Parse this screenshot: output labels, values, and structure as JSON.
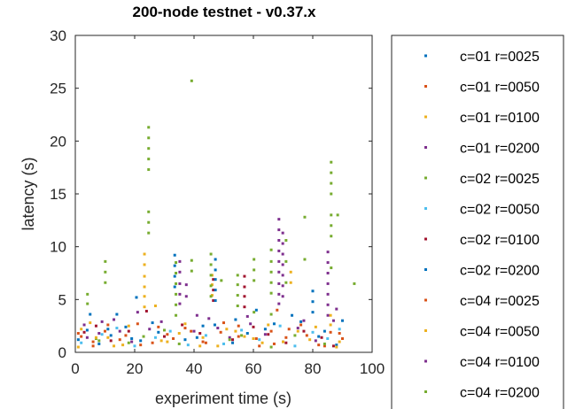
{
  "chart_data": {
    "type": "scatter",
    "title": "200-node testnet - v0.37.x",
    "xlabel": "experiment time (s)",
    "ylabel": "latency (s)",
    "xlim": [
      0,
      100
    ],
    "ylim": [
      0,
      30
    ],
    "xticks": [
      "0",
      "20",
      "40",
      "60",
      "80",
      "100"
    ],
    "yticks": [
      "0",
      "5",
      "10",
      "15",
      "20",
      "25",
      "30"
    ],
    "grid": false,
    "legend": "right-outside",
    "series": [
      {
        "name": "c=01 r=0025",
        "color": "#0072BD",
        "points": [
          [
            1,
            1.2
          ],
          [
            4,
            2.1
          ],
          [
            8,
            0.8
          ],
          [
            12,
            1.6
          ],
          [
            17,
            2.4
          ],
          [
            22,
            1.1
          ],
          [
            28,
            1.9
          ],
          [
            33.5,
            9.2
          ],
          [
            33.5,
            8.2
          ],
          [
            33.5,
            7.2
          ],
          [
            33.5,
            6.2
          ],
          [
            41,
            1.4
          ],
          [
            47,
            2.6
          ],
          [
            53,
            0.9
          ],
          [
            58,
            1.8
          ],
          [
            64,
            2.2
          ],
          [
            70,
            1.0
          ],
          [
            76,
            2.9
          ],
          [
            82,
            1.5
          ],
          [
            88,
            0.7
          ],
          [
            20.6,
            5.2
          ],
          [
            14,
            3.6
          ]
        ]
      },
      {
        "name": "c=01 r=0050",
        "color": "#D95319",
        "points": [
          [
            2,
            1.5
          ],
          [
            6,
            0.6
          ],
          [
            10,
            2.0
          ],
          [
            15,
            1.2
          ],
          [
            21,
            2.7
          ],
          [
            26,
            0.9
          ],
          [
            31,
            1.7
          ],
          [
            37,
            2.3
          ],
          [
            43,
            1.0
          ],
          [
            49,
            1.9
          ],
          [
            55,
            2.5
          ],
          [
            61,
            1.3
          ],
          [
            67,
            0.8
          ],
          [
            72,
            2.2
          ],
          [
            78,
            1.6
          ],
          [
            84,
            0.6
          ],
          [
            89,
            1.8
          ],
          [
            68,
            4.0
          ]
        ]
      },
      {
        "name": "c=01 r=0100",
        "color": "#EDB120",
        "points": [
          [
            1,
            0.5
          ],
          [
            5,
            2.8
          ],
          [
            11,
            1.4
          ],
          [
            16,
            0.7
          ],
          [
            23.3,
            9.3
          ],
          [
            23.3,
            8.3
          ],
          [
            23.3,
            7.2
          ],
          [
            23.3,
            6.2
          ],
          [
            23.3,
            5.3
          ],
          [
            23.3,
            4.3
          ],
          [
            29,
            1.1
          ],
          [
            35,
            1.8
          ],
          [
            42,
            0.6
          ],
          [
            46.1,
            7.3
          ],
          [
            46.1,
            6.4
          ],
          [
            46.1,
            5.4
          ],
          [
            51,
            2.2
          ],
          [
            57,
            1.5
          ],
          [
            63,
            0.9
          ],
          [
            72.6,
            7.6
          ],
          [
            72.6,
            6.6
          ],
          [
            79,
            1.2
          ],
          [
            86,
            2.6
          ],
          [
            88,
            0.5
          ]
        ]
      },
      {
        "name": "c=01 r=0200",
        "color": "#7E2F8E",
        "points": [
          [
            3,
            2.6
          ],
          [
            8,
            1.8
          ],
          [
            13,
            3.1
          ],
          [
            19,
            1.0
          ],
          [
            25,
            2.2
          ],
          [
            35.2,
            8.6
          ],
          [
            35.2,
            7.6
          ],
          [
            35.2,
            6.5
          ],
          [
            35.2,
            5.5
          ],
          [
            35.2,
            4.6
          ],
          [
            40,
            2.0
          ],
          [
            45,
            3.2
          ],
          [
            52,
            1.4
          ],
          [
            59,
            2.7
          ],
          [
            68.6,
            12.6
          ],
          [
            68.6,
            11.6
          ],
          [
            68.6,
            10.6
          ],
          [
            68.6,
            9.6
          ],
          [
            68.6,
            8.6
          ],
          [
            68.6,
            7.6
          ],
          [
            68.6,
            6.5
          ],
          [
            68.6,
            5.5
          ],
          [
            68.6,
            4.6
          ],
          [
            75,
            2.3
          ],
          [
            81,
            1.1
          ],
          [
            87,
            3.0
          ]
        ]
      },
      {
        "name": "c=02 r=0025",
        "color": "#77AC30",
        "points": [
          [
            24.7,
            21.3
          ],
          [
            24.7,
            20.3
          ],
          [
            24.7,
            19.3
          ],
          [
            24.7,
            18.3
          ],
          [
            24.7,
            17.3
          ],
          [
            24.7,
            13.3
          ],
          [
            24.7,
            12.3
          ],
          [
            24.7,
            11.3
          ],
          [
            39.2,
            25.7
          ],
          [
            39.2,
            8.7
          ],
          [
            39.2,
            7.7
          ],
          [
            10.1,
            8.6
          ],
          [
            10.1,
            7.6
          ],
          [
            10.1,
            6.6
          ],
          [
            4.1,
            5.5
          ],
          [
            4.1,
            4.6
          ],
          [
            33.9,
            8.5
          ],
          [
            33.9,
            7.5
          ],
          [
            33.9,
            6.5
          ],
          [
            33.9,
            5.5
          ],
          [
            33.9,
            4.5
          ],
          [
            33.9,
            3.5
          ],
          [
            45.7,
            9.3
          ],
          [
            45.7,
            8.3
          ],
          [
            45.7,
            7.3
          ],
          [
            45.7,
            6.3
          ],
          [
            45.7,
            5.3
          ],
          [
            7,
            1.3
          ],
          [
            18,
            0.9
          ],
          [
            30,
            2.1
          ],
          [
            56,
            1.6
          ],
          [
            66,
            0.5
          ]
        ]
      },
      {
        "name": "c=02 r=0050",
        "color": "#4DBEEE",
        "points": [
          [
            2,
            0.9
          ],
          [
            9,
            1.7
          ],
          [
            14,
            2.3
          ],
          [
            20,
            0.6
          ],
          [
            27,
            1.4
          ],
          [
            32,
            2.0
          ],
          [
            38,
            0.7
          ],
          [
            44,
            1.6
          ],
          [
            50,
            0.8
          ],
          [
            56,
            2.1
          ],
          [
            62,
            1.2
          ],
          [
            69,
            2.5
          ],
          [
            74,
            0.6
          ],
          [
            80,
            1.9
          ],
          [
            85,
            1.3
          ],
          [
            89,
            2.2
          ]
        ]
      },
      {
        "name": "c=02 r=0100",
        "color": "#A2142F",
        "points": [
          [
            3,
            1.9
          ],
          [
            7,
            2.5
          ],
          [
            12,
            1.1
          ],
          [
            18,
            2.0
          ],
          [
            24,
            3.9
          ],
          [
            30,
            1.5
          ],
          [
            36,
            2.6
          ],
          [
            42,
            1.8
          ],
          [
            46.5,
            6.9
          ],
          [
            46.5,
            5.9
          ],
          [
            46.5,
            4.9
          ],
          [
            57,
            7.2
          ],
          [
            57,
            6.2
          ],
          [
            57,
            5.3
          ],
          [
            57,
            4.3
          ],
          [
            53,
            1.2
          ],
          [
            60,
            2.4
          ],
          [
            65,
            1.7
          ],
          [
            71,
            0.9
          ],
          [
            77,
            2.0
          ],
          [
            83,
            1.4
          ],
          [
            87,
            0.6
          ]
        ]
      },
      {
        "name": "c=02 r=0200",
        "color": "#0072BD",
        "points": [
          [
            47.2,
            8.8
          ],
          [
            47.2,
            7.8
          ],
          [
            47.2,
            6.9
          ],
          [
            47.2,
            5.9
          ],
          [
            47.2,
            4.9
          ],
          [
            80,
            5.8
          ],
          [
            80,
            4.8
          ],
          [
            80,
            3.8
          ],
          [
            5,
            3.6
          ],
          [
            11,
            2.2
          ],
          [
            19,
            1.3
          ],
          [
            26,
            2.8
          ],
          [
            37,
            1.2
          ],
          [
            43,
            2.5
          ],
          [
            54,
            3.1
          ],
          [
            61,
            4.0
          ],
          [
            67,
            2.7
          ],
          [
            73,
            3.5
          ],
          [
            84,
            2.0
          ],
          [
            90,
            3.0
          ]
        ]
      },
      {
        "name": "c=04 r=0025",
        "color": "#D95319",
        "points": [
          [
            1,
            1.8
          ],
          [
            6,
            1.0
          ],
          [
            11,
            2.6
          ],
          [
            17,
            1.6
          ],
          [
            22,
            0.7
          ],
          [
            28,
            2.4
          ],
          [
            33,
            1.3
          ],
          [
            39,
            2.0
          ],
          [
            44,
            0.9
          ],
          [
            50,
            2.8
          ],
          [
            55,
            1.5
          ],
          [
            62,
            0.6
          ],
          [
            66,
            2.0
          ],
          [
            71,
            1.4
          ],
          [
            76,
            2.6
          ],
          [
            82,
            0.7
          ],
          [
            86,
            1.9
          ],
          [
            90,
            1.3
          ]
        ]
      },
      {
        "name": "c=04 r=0050",
        "color": "#EDB120",
        "points": [
          [
            2,
            2.2
          ],
          [
            7,
            1.4
          ],
          [
            13,
            0.6
          ],
          [
            18,
            2.5
          ],
          [
            27,
            4.4
          ],
          [
            31,
            1.0
          ],
          [
            37,
            2.7
          ],
          [
            43,
            1.4
          ],
          [
            48,
            0.6
          ],
          [
            54,
            2.0
          ],
          [
            60,
            1.3
          ],
          [
            65,
            2.6
          ],
          [
            70,
            1.0
          ],
          [
            75,
            2.0
          ],
          [
            81,
            2.4
          ],
          [
            86,
            3.5
          ],
          [
            89,
            1.0
          ]
        ]
      },
      {
        "name": "c=04 r=0100",
        "color": "#7E2F8E",
        "points": [
          [
            69.9,
            11.3
          ],
          [
            69.9,
            10.3
          ],
          [
            69.9,
            9.3
          ],
          [
            69.9,
            8.3
          ],
          [
            69.9,
            7.3
          ],
          [
            69.9,
            6.3
          ],
          [
            69.9,
            5.3
          ],
          [
            85.1,
            9.5
          ],
          [
            85.1,
            8.5
          ],
          [
            85.1,
            7.5
          ],
          [
            85.1,
            6.5
          ],
          [
            85.1,
            5.5
          ],
          [
            85.1,
            4.5
          ],
          [
            85.1,
            3.5
          ],
          [
            37.4,
            6.4
          ],
          [
            37.4,
            5.3
          ],
          [
            4,
            1.4
          ],
          [
            9,
            2.9
          ],
          [
            15,
            2.0
          ],
          [
            21,
            3.8
          ],
          [
            29,
            2.9
          ],
          [
            41,
            3.5
          ],
          [
            48,
            2.3
          ],
          [
            58,
            3.4
          ],
          [
            64,
            1.7
          ],
          [
            77,
            3.0
          ],
          [
            88,
            4.1
          ]
        ]
      },
      {
        "name": "c=04 r=0200",
        "color": "#77AC30",
        "points": [
          [
            86.2,
            18.0
          ],
          [
            86.2,
            17.0
          ],
          [
            86.2,
            16.0
          ],
          [
            86.2,
            15.0
          ],
          [
            86.2,
            13.0
          ],
          [
            86.2,
            12.0
          ],
          [
            86.2,
            11.0
          ],
          [
            86.2,
            8.0
          ],
          [
            88.4,
            13.0
          ],
          [
            77.3,
            12.8
          ],
          [
            77.3,
            8.8
          ],
          [
            94,
            6.5
          ],
          [
            60.2,
            8.8
          ],
          [
            60.2,
            7.8
          ],
          [
            60.2,
            6.8
          ],
          [
            60.2,
            3.8
          ],
          [
            66,
            9.7
          ],
          [
            66,
            8.6
          ],
          [
            66,
            7.6
          ],
          [
            66,
            6.6
          ],
          [
            66,
            5.6
          ],
          [
            66,
            3.6
          ],
          [
            71,
            10.6
          ],
          [
            71,
            8.6
          ],
          [
            71,
            6.6
          ],
          [
            54.7,
            7.3
          ],
          [
            54.7,
            6.4
          ],
          [
            54.7,
            5.4
          ],
          [
            54.7,
            4.4
          ],
          [
            49.2,
            6.8
          ],
          [
            8,
            1.1
          ],
          [
            23,
            1.5
          ],
          [
            35,
            0.8
          ],
          [
            52,
            1.2
          ],
          [
            74,
            1.6
          ],
          [
            84,
            0.8
          ]
        ]
      }
    ]
  }
}
